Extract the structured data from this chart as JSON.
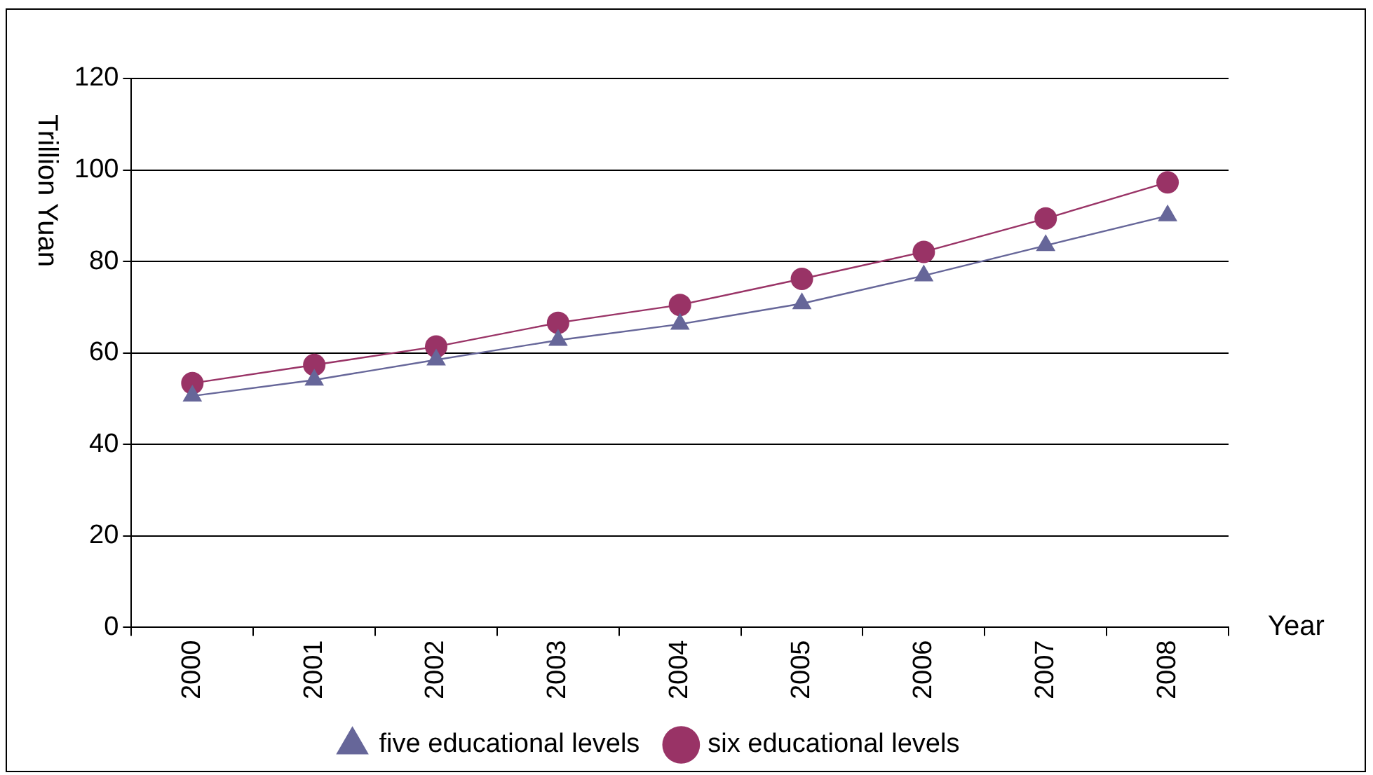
{
  "chart_data": {
    "type": "line",
    "xlabel": "Year",
    "ylabel": "Trillion Yuan",
    "categories": [
      "2000",
      "2001",
      "2002",
      "2003",
      "2004",
      "2005",
      "2006",
      "2007",
      "2008"
    ],
    "series": [
      {
        "name": "five educational levels",
        "color": "#666699",
        "marker": "triangle",
        "values": [
          50.6,
          54.1,
          58.5,
          62.8,
          66.3,
          70.8,
          76.9,
          83.5,
          90.0
        ]
      },
      {
        "name": "six educational levels",
        "color": "#993366",
        "marker": "circle",
        "values": [
          53.4,
          57.4,
          61.4,
          66.6,
          70.5,
          76.2,
          82.1,
          89.4,
          97.3
        ]
      }
    ],
    "ylim": [
      0,
      120
    ],
    "yticks": [
      0,
      20,
      40,
      60,
      80,
      100,
      120
    ],
    "grid": "y",
    "legend": "bottom"
  }
}
